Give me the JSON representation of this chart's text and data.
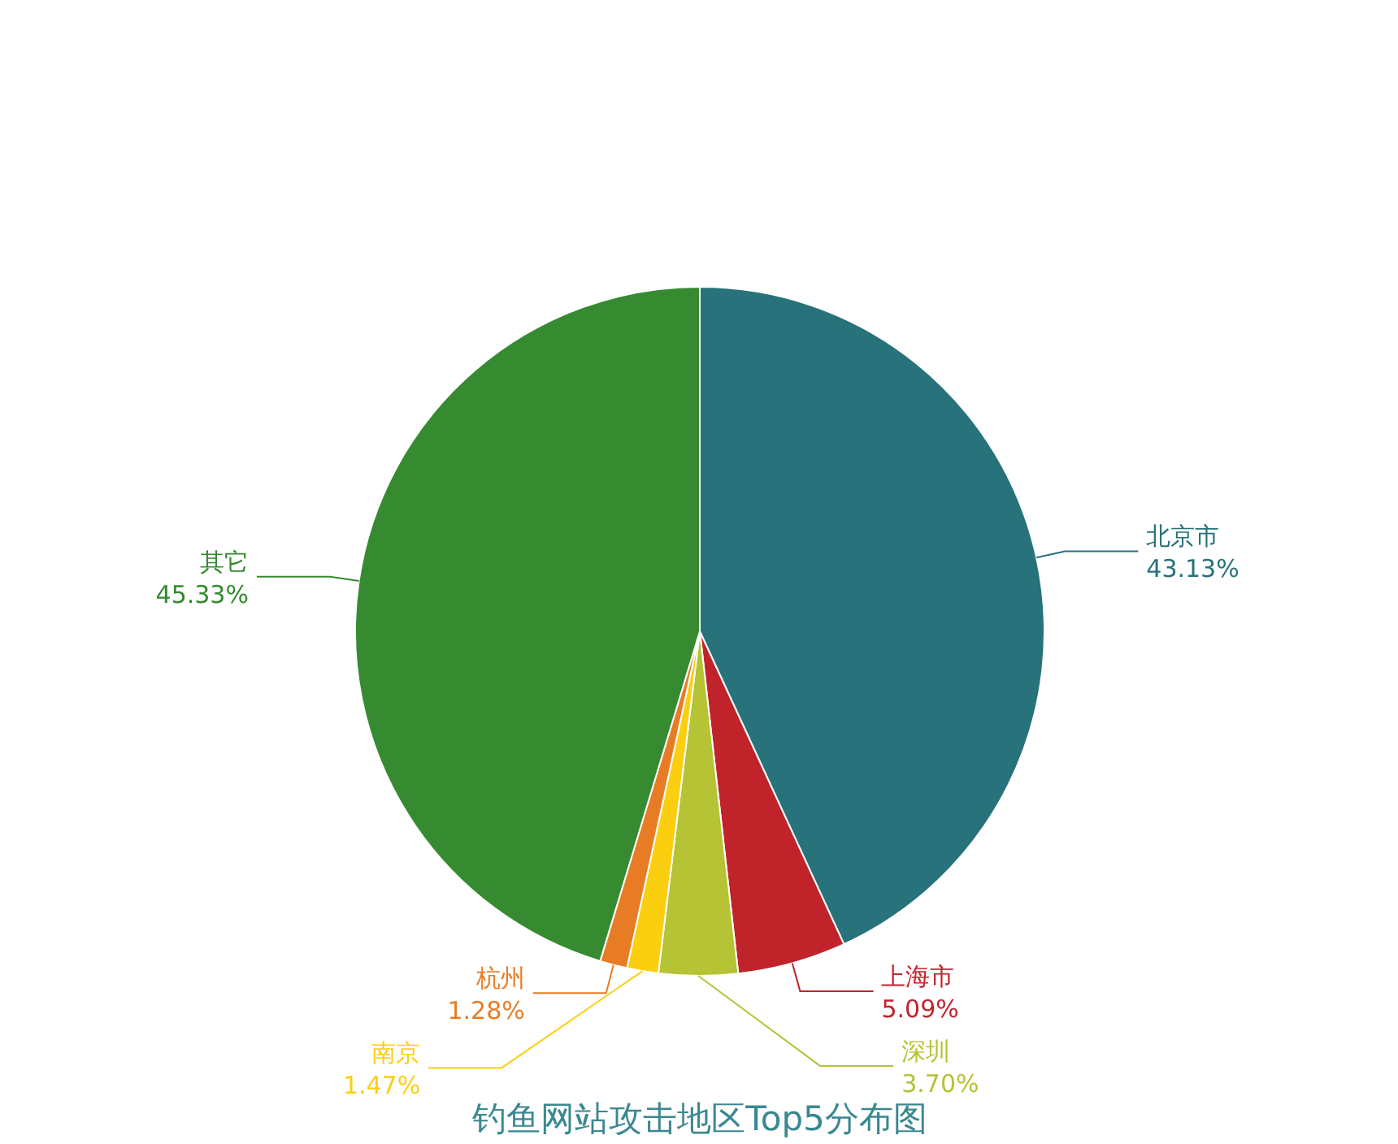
{
  "chart_data": {
    "type": "pie",
    "title": "钓鱼网站攻击地区Top5分布图",
    "categories": [
      "北京市",
      "上海市",
      "深圳",
      "南京",
      "杭州",
      "其它"
    ],
    "values": [
      43.13,
      5.09,
      3.7,
      1.47,
      1.28,
      45.33
    ],
    "colors": [
      "#27727b",
      "#c1232b",
      "#b5c334",
      "#fcce10",
      "#e87c25",
      "#368a30"
    ],
    "value_labels": [
      "43.13%",
      "5.09%",
      "3.70%",
      "1.47%",
      "1.28%",
      "45.33%"
    ]
  }
}
